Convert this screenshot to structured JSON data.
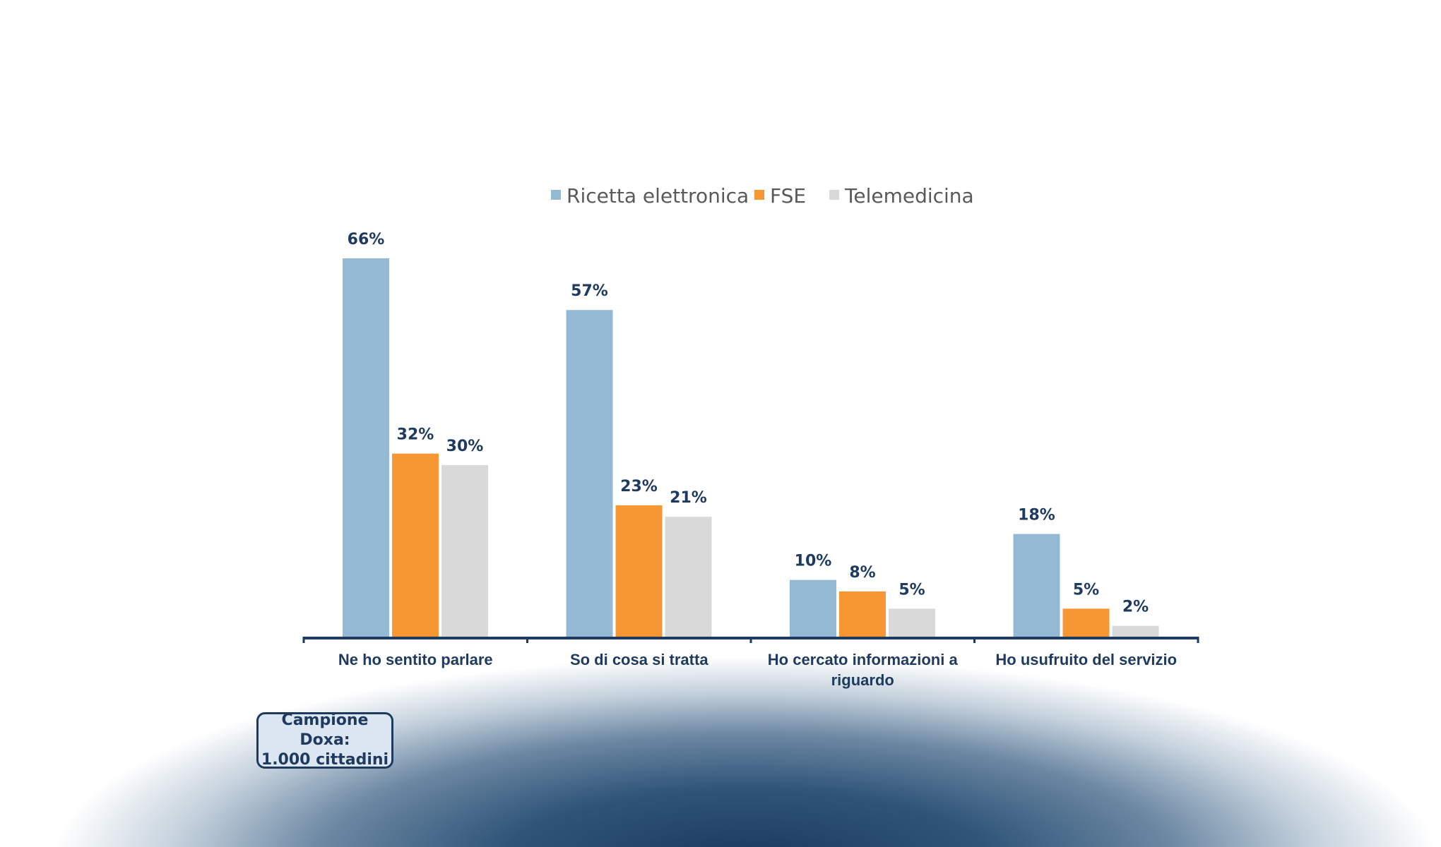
{
  "chart_data": {
    "type": "bar",
    "categories": [
      [
        "Ne ho sentito parlare"
      ],
      [
        "So di cosa si tratta"
      ],
      [
        "Ho cercato informazioni a",
        "riguardo"
      ],
      [
        "Ho usufruito del servizio"
      ]
    ],
    "series": [
      {
        "name": "Ricetta elettronica",
        "color": "#93b9d4",
        "values": [
          66,
          57,
          10,
          18
        ],
        "labels": [
          "66%",
          "57%",
          "10%",
          "18%"
        ]
      },
      {
        "name": "FSE",
        "color": "#f79733",
        "values": [
          32,
          23,
          8,
          5
        ],
        "labels": [
          "32%",
          "23%",
          "8%",
          "5%"
        ]
      },
      {
        "name": "Telemedicina",
        "color": "#d9d9d9",
        "values": [
          30,
          21,
          5,
          2
        ],
        "labels": [
          "30%",
          "21%",
          "5%",
          "2%"
        ]
      }
    ],
    "unit": "%",
    "ylim": [
      0,
      66
    ],
    "legend_position": "top-center",
    "axis_color": "#1f3a5f"
  },
  "note": {
    "line1": "Campione Doxa:",
    "line2": "1.000 cittadini"
  }
}
